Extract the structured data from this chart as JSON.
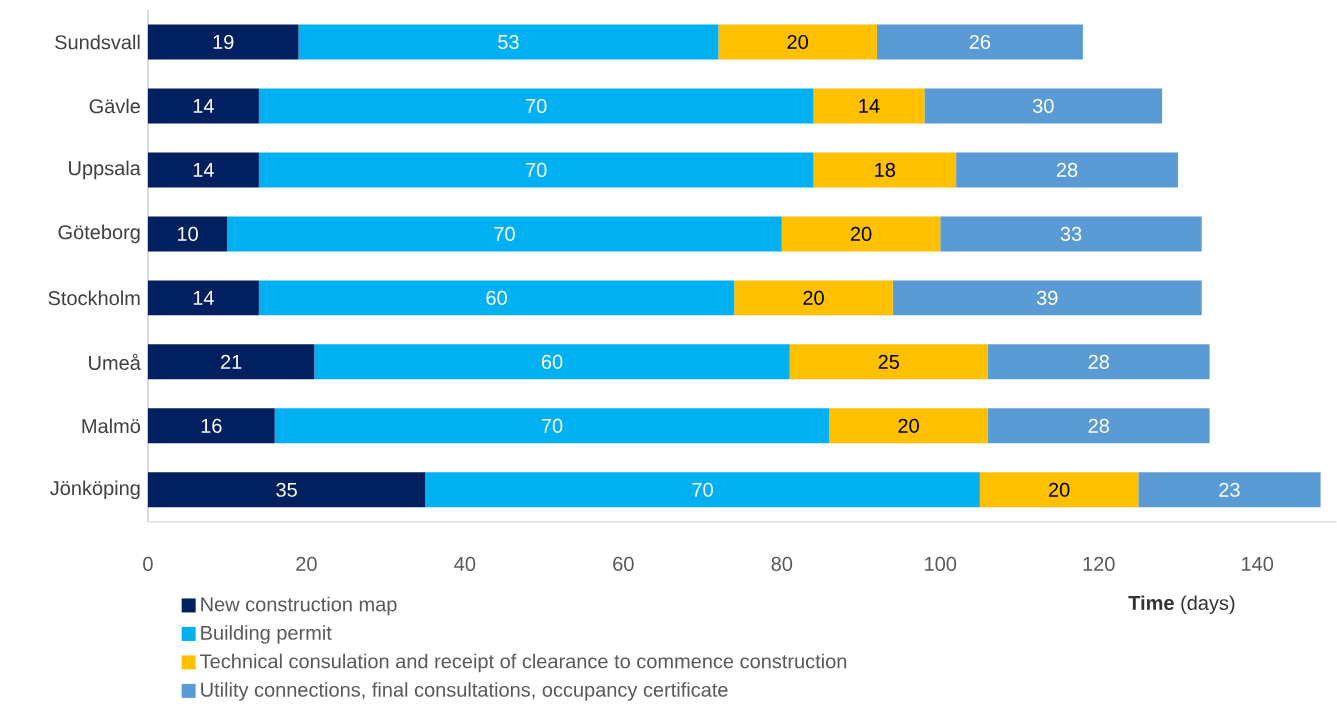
{
  "chart_data": {
    "type": "bar",
    "orientation": "horizontal",
    "stacked": true,
    "data_labels": true,
    "grid": false,
    "legend": "bottom left",
    "categories": [
      "Sundsvall",
      "Gävle",
      "Uppsala",
      "Göteborg",
      "Stockholm",
      "Umeå",
      "Malmö",
      "Jönköping"
    ],
    "series": [
      {
        "name": "New construction map",
        "color": "#002060",
        "values": [
          19,
          14,
          14,
          10,
          14,
          21,
          16,
          35
        ]
      },
      {
        "name": "Building permit",
        "color": "#00b0f0",
        "values": [
          53,
          70,
          70,
          70,
          60,
          60,
          70,
          70
        ]
      },
      {
        "name": "Technical consulation and receipt of clearance to commence construction",
        "color": "#ffc000",
        "values": [
          20,
          14,
          18,
          20,
          20,
          25,
          20,
          20
        ]
      },
      {
        "name": "Utility connections, final consultations, occupancy certificate",
        "color": "#5b9bd5",
        "values": [
          26,
          30,
          28,
          33,
          39,
          28,
          28,
          23
        ]
      }
    ],
    "xlim": [
      0,
      150
    ],
    "xticks": [
      0,
      20,
      40,
      60,
      80,
      100,
      120,
      140
    ],
    "xlabel": "**Time** (days)"
  }
}
